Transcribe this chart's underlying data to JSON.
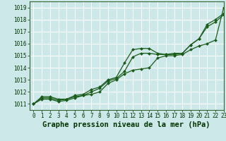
{
  "background_color": "#cce8e8",
  "grid_color": "#aadddd",
  "line_color": "#1a5c1a",
  "title": "Graphe pression niveau de la mer (hPa)",
  "xlim": [
    -0.5,
    23
  ],
  "ylim": [
    1010.5,
    1019.5
  ],
  "yticks": [
    1011,
    1012,
    1013,
    1014,
    1015,
    1016,
    1017,
    1018,
    1019
  ],
  "xticks": [
    0,
    1,
    2,
    3,
    4,
    5,
    6,
    7,
    8,
    9,
    10,
    11,
    12,
    13,
    14,
    15,
    16,
    17,
    18,
    19,
    20,
    21,
    22,
    23
  ],
  "series": [
    {
      "x": [
        0,
        1,
        2,
        3,
        4,
        5,
        6,
        7,
        8,
        9,
        10,
        11,
        12,
        13,
        14,
        15,
        16,
        17,
        18,
        19,
        20,
        21,
        22,
        23
      ],
      "y": [
        1011.0,
        1011.6,
        1011.6,
        1011.4,
        1011.4,
        1011.7,
        1011.8,
        1012.2,
        1012.4,
        1013.0,
        1013.2,
        1014.4,
        1015.5,
        1015.6,
        1015.6,
        1015.2,
        1015.1,
        1015.1,
        1015.2,
        1015.9,
        1016.4,
        1017.6,
        1018.0,
        1018.5
      ],
      "marker": "D",
      "markersize": 2.0,
      "linewidth": 0.9
    },
    {
      "x": [
        0,
        1,
        2,
        3,
        4,
        5,
        6,
        7,
        8,
        9,
        10,
        11,
        12,
        13,
        14,
        15,
        16,
        17,
        18,
        19,
        20,
        21,
        22,
        23
      ],
      "y": [
        1011.0,
        1011.5,
        1011.5,
        1011.3,
        1011.4,
        1011.6,
        1011.7,
        1012.0,
        1012.3,
        1012.9,
        1013.1,
        1013.7,
        1014.9,
        1015.2,
        1015.2,
        1015.1,
        1015.1,
        1015.2,
        1015.2,
        1015.9,
        1016.4,
        1017.4,
        1017.8,
        1018.4
      ],
      "marker": "D",
      "markersize": 2.0,
      "linewidth": 0.9
    },
    {
      "x": [
        0,
        1,
        2,
        3,
        4,
        5,
        6,
        7,
        8,
        9,
        10,
        11,
        12,
        13,
        14,
        15,
        16,
        17,
        18,
        19,
        20,
        21,
        22,
        23
      ],
      "y": [
        1011.0,
        1011.4,
        1011.4,
        1011.2,
        1011.3,
        1011.5,
        1011.7,
        1011.8,
        1012.0,
        1012.7,
        1013.0,
        1013.5,
        1013.8,
        1013.9,
        1014.0,
        1014.8,
        1015.0,
        1015.0,
        1015.1,
        1015.5,
        1015.8,
        1016.0,
        1016.3,
        1019.0
      ],
      "marker": "D",
      "markersize": 2.0,
      "linewidth": 0.9
    }
  ],
  "title_fontsize": 7.5,
  "tick_fontsize": 5.5,
  "title_color": "#003300",
  "tick_color": "#003300",
  "spine_color": "#336633"
}
